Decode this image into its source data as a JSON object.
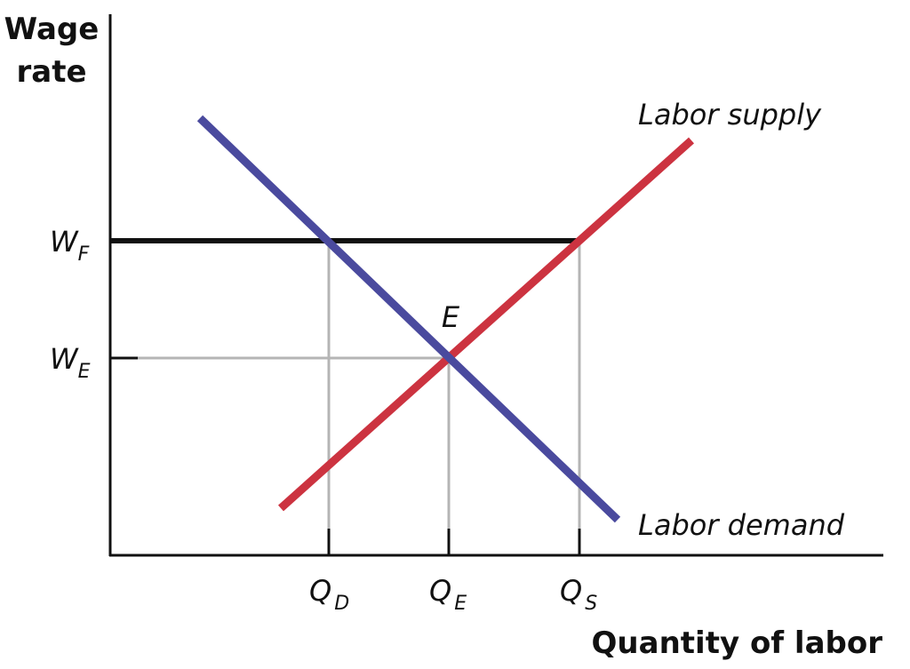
{
  "axes": {
    "y_title": [
      "Wage",
      "rate"
    ],
    "x_title": "Quantity of labor"
  },
  "curves": {
    "supply": "Labor supply",
    "demand": "Labor demand"
  },
  "points": {
    "equilibrium": "E"
  },
  "wage_labels": [
    {
      "symbol": "W",
      "sub": "F"
    },
    {
      "symbol": "W",
      "sub": "E"
    }
  ],
  "quantity_labels": [
    {
      "symbol": "Q",
      "sub": "D"
    },
    {
      "symbol": "Q",
      "sub": "E"
    },
    {
      "symbol": "Q",
      "sub": "S"
    }
  ]
}
